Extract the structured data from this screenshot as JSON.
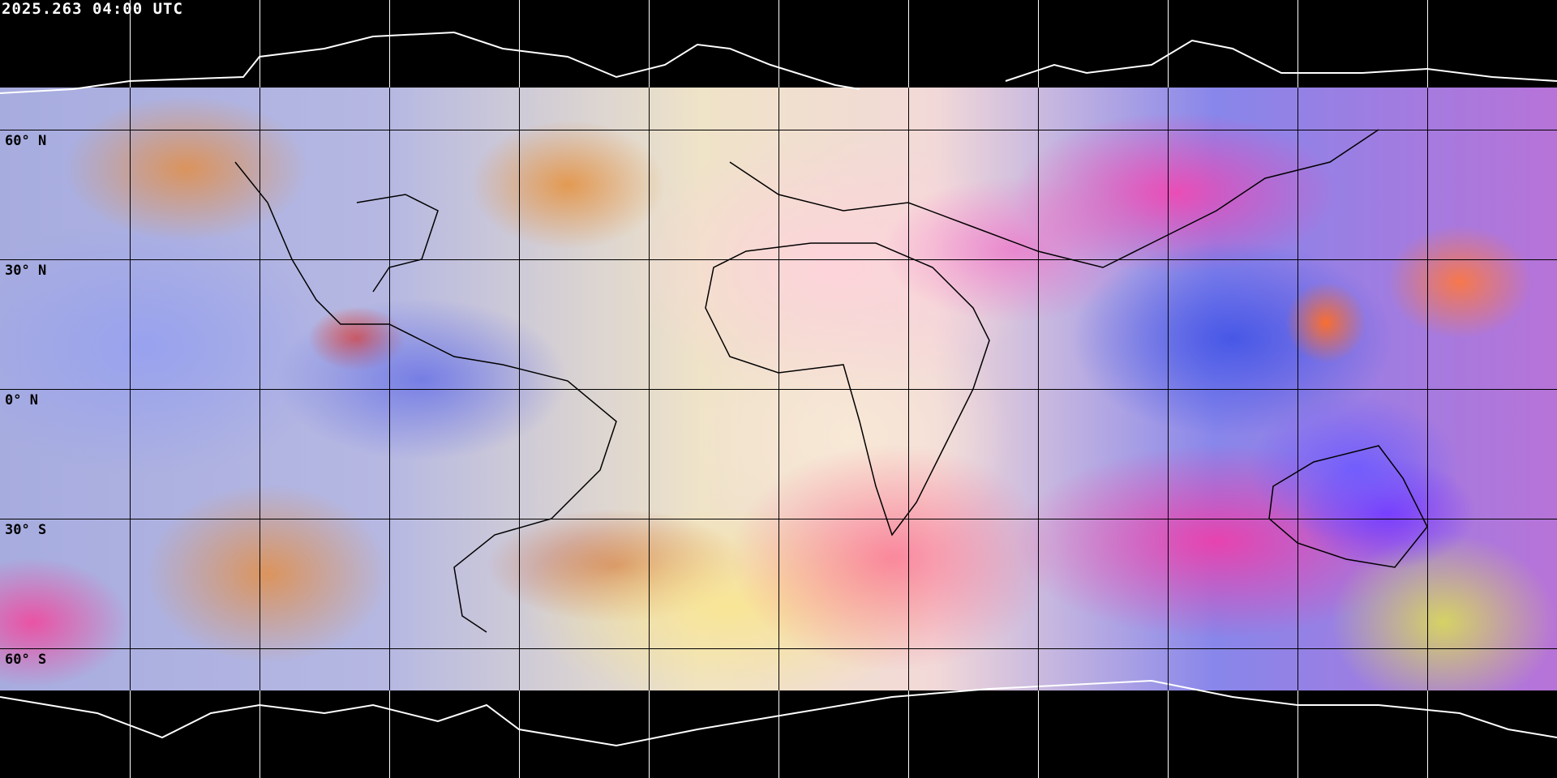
{
  "title": "2025.263 04:00 UTC",
  "latitude_labels": [
    "60° N",
    "30° N",
    "0° N",
    "30° S",
    "60° S"
  ],
  "colors": {
    "background": "#000000",
    "grid_over_imagery": "#000000",
    "grid_over_background": "#ffffff",
    "coastline_land": "#000000",
    "coastline_polar": "#ffffff"
  }
}
